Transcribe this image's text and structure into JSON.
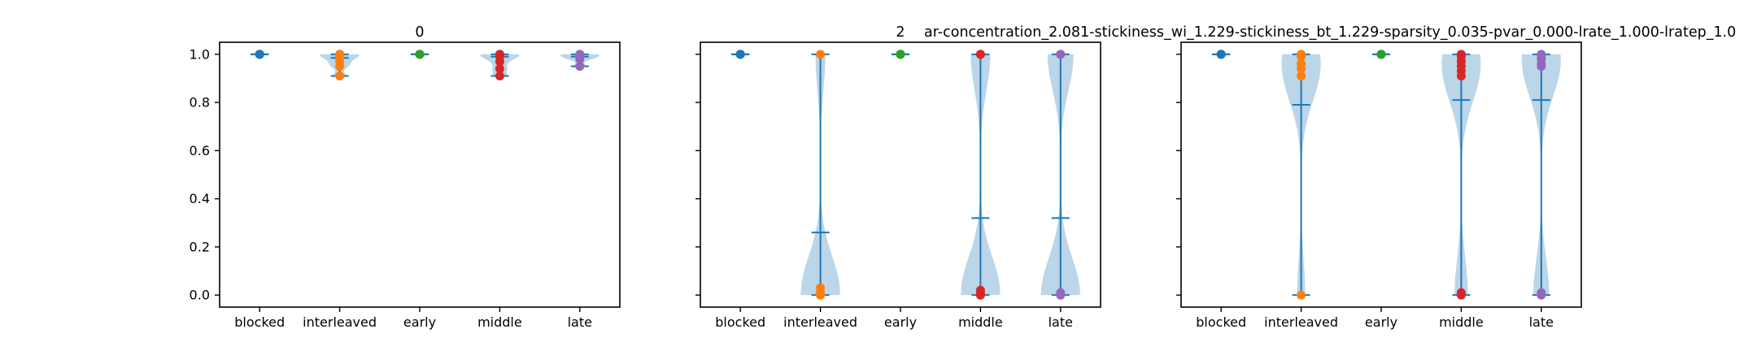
{
  "figure": {
    "suptitle": "ar-concentration_2.081-stickiness_wi_1.229-stickiness_bt_1.229-sparsity_0.035-pvar_0.000-lrate_1.000-lratep_1.0"
  },
  "chart_data": [
    {
      "type": "violin",
      "title": "0",
      "categories": [
        "blocked",
        "interleaved",
        "early",
        "middle",
        "late"
      ],
      "ylim": [
        -0.05,
        1.05
      ],
      "yticks": [
        0.0,
        0.2,
        0.4,
        0.6,
        0.8,
        1.0
      ],
      "ytick_labels": [
        "0.0",
        "0.2",
        "0.4",
        "0.6",
        "0.8",
        "1.0"
      ],
      "grid": false,
      "series": [
        {
          "category": "blocked",
          "color": "#1f77b4",
          "min": 1.0,
          "max": 1.0,
          "mean": 1.0,
          "points": [
            1.0,
            1.0,
            1.0,
            1.0
          ]
        },
        {
          "category": "interleaved",
          "color": "#ff7f0e",
          "min": 0.91,
          "max": 1.0,
          "mean": 0.985,
          "points": [
            1.0,
            1.0,
            0.99,
            0.97,
            0.95,
            0.91
          ]
        },
        {
          "category": "early",
          "color": "#2ca02c",
          "min": 1.0,
          "max": 1.0,
          "mean": 1.0,
          "points": [
            1.0,
            1.0,
            1.0
          ]
        },
        {
          "category": "middle",
          "color": "#d62728",
          "min": 0.91,
          "max": 1.0,
          "mean": 0.99,
          "points": [
            1.0,
            1.0,
            0.99,
            0.97,
            0.94,
            0.91
          ]
        },
        {
          "category": "late",
          "color": "#9467bd",
          "min": 0.95,
          "max": 1.0,
          "mean": 0.99,
          "points": [
            1.0,
            1.0,
            0.99,
            0.98,
            0.95
          ]
        }
      ]
    },
    {
      "type": "violin",
      "title": "2",
      "categories": [
        "blocked",
        "interleaved",
        "early",
        "middle",
        "late"
      ],
      "ylim": [
        -0.05,
        1.05
      ],
      "yticks": [
        0.0,
        0.2,
        0.4,
        0.6,
        0.8,
        1.0
      ],
      "ytick_labels": [
        "0.0",
        "0.2",
        "0.4",
        "0.6",
        "0.8",
        "1.0"
      ],
      "grid": false,
      "series": [
        {
          "category": "blocked",
          "color": "#1f77b4",
          "min": 1.0,
          "max": 1.0,
          "mean": 1.0,
          "points": [
            1.0,
            1.0,
            1.0
          ]
        },
        {
          "category": "interleaved",
          "color": "#ff7f0e",
          "min": 0.0,
          "max": 1.0,
          "mean": 0.26,
          "points": [
            1.0,
            0.03,
            0.01,
            0.0,
            0.0
          ]
        },
        {
          "category": "early",
          "color": "#2ca02c",
          "min": 1.0,
          "max": 1.0,
          "mean": 1.0,
          "points": [
            1.0,
            1.0,
            1.0
          ]
        },
        {
          "category": "middle",
          "color": "#d62728",
          "min": 0.0,
          "max": 1.0,
          "mean": 0.32,
          "points": [
            1.0,
            1.0,
            0.02,
            0.01,
            0.0,
            0.0
          ]
        },
        {
          "category": "late",
          "color": "#9467bd",
          "min": 0.0,
          "max": 1.0,
          "mean": 0.32,
          "points": [
            1.0,
            1.0,
            0.01,
            0.0,
            0.0
          ]
        }
      ]
    },
    {
      "type": "violin",
      "title": "",
      "categories": [
        "blocked",
        "interleaved",
        "early",
        "middle",
        "late"
      ],
      "ylim": [
        -0.05,
        1.05
      ],
      "yticks": [
        0.0,
        0.2,
        0.4,
        0.6,
        0.8,
        1.0
      ],
      "ytick_labels": [
        "0.0",
        "0.2",
        "0.4",
        "0.6",
        "0.8",
        "1.0"
      ],
      "grid": false,
      "series": [
        {
          "category": "blocked",
          "color": "#1f77b4",
          "min": 1.0,
          "max": 1.0,
          "mean": 1.0,
          "points": [
            1.0,
            1.0,
            1.0
          ]
        },
        {
          "category": "interleaved",
          "color": "#ff7f0e",
          "min": 0.0,
          "max": 1.0,
          "mean": 0.79,
          "points": [
            1.0,
            0.99,
            0.96,
            0.94,
            0.91,
            0.0
          ]
        },
        {
          "category": "early",
          "color": "#2ca02c",
          "min": 1.0,
          "max": 1.0,
          "mean": 1.0,
          "points": [
            1.0,
            1.0,
            1.0
          ]
        },
        {
          "category": "middle",
          "color": "#d62728",
          "min": 0.0,
          "max": 1.0,
          "mean": 0.81,
          "points": [
            1.0,
            0.99,
            0.97,
            0.95,
            0.93,
            0.91,
            0.01,
            0.0
          ]
        },
        {
          "category": "late",
          "color": "#9467bd",
          "min": 0.0,
          "max": 1.0,
          "mean": 0.81,
          "points": [
            1.0,
            0.99,
            0.98,
            0.96,
            0.95,
            0.01,
            0.0
          ]
        }
      ]
    }
  ]
}
